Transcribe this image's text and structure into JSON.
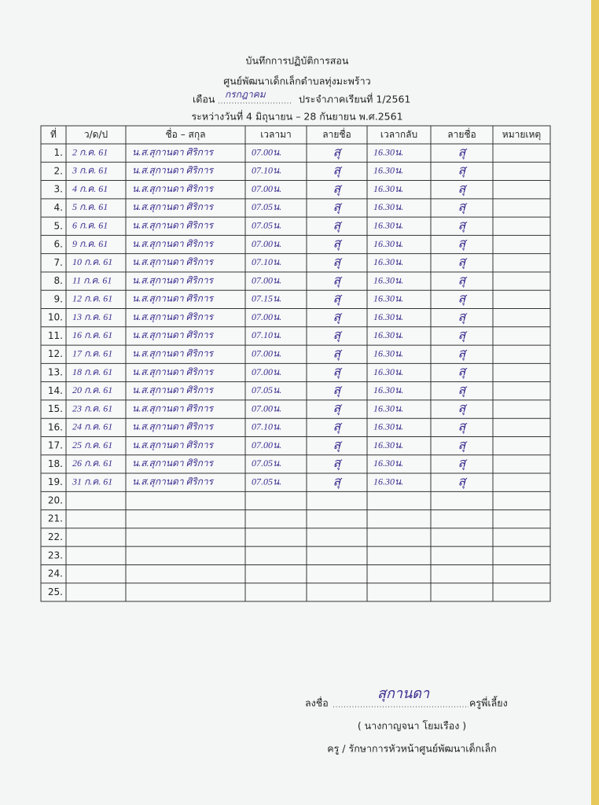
{
  "header": {
    "title": "บันทึกการปฏิบัติการสอน",
    "subtitle": "ศูนย์พัฒนาเด็กเล็กตำบลทุ่งมะพร้าว",
    "month_label": "เดือน",
    "month": "กรกฎาคม",
    "semester": "ประจำภาคเรียนที่ 1/2561",
    "period": "ระหว่างวันที่ 4 มิถุนายน – 28 กันยายน พ.ศ.2561"
  },
  "table": {
    "columns": [
      "ที่",
      "ว/ด/ป",
      "ชื่อ – สกุล",
      "เวลามา",
      "ลายชื่อ",
      "เวลากลับ",
      "ลายชื่อ",
      "หมายเหตุ"
    ],
    "rows": [
      [
        "1.",
        "2 ก.ค. 61",
        "น.ส.สุกานดา ศิริการ",
        "07.00น.",
        "สุ",
        "16.30น.",
        "สุ"
      ],
      [
        "2.",
        "3 ก.ค. 61",
        "น.ส.สุกานดา ศิริการ",
        "07.10น.",
        "สุ",
        "16.30น.",
        "สุ"
      ],
      [
        "3.",
        "4 ก.ค. 61",
        "น.ส.สุกานดา ศิริการ",
        "07.00น.",
        "สุ",
        "16.30น.",
        "สุ"
      ],
      [
        "4.",
        "5 ก.ค. 61",
        "น.ส.สุกานดา ศิริการ",
        "07.05น.",
        "สุ",
        "16.30น.",
        "สุ"
      ],
      [
        "5.",
        "6 ก.ค. 61",
        "น.ส.สุกานดา ศิริการ",
        "07.05น.",
        "สุ",
        "16.30น.",
        "สุ"
      ],
      [
        "6.",
        "9 ก.ค. 61",
        "น.ส.สุกานดา ศิริการ",
        "07.00น.",
        "สุ",
        "16.30น.",
        "สุ"
      ],
      [
        "7.",
        "10 ก.ค. 61",
        "น.ส.สุกานดา ศิริการ",
        "07.10น.",
        "สุ",
        "16.30น.",
        "สุ"
      ],
      [
        "8.",
        "11 ก.ค. 61",
        "น.ส.สุกานดา ศิริการ",
        "07.00น.",
        "สุ",
        "16.30น.",
        "สุ"
      ],
      [
        "9.",
        "12 ก.ค. 61",
        "น.ส.สุกานดา ศิริการ",
        "07.15น.",
        "สุ",
        "16.30น.",
        "สุ"
      ],
      [
        "10.",
        "13 ก.ค. 61",
        "น.ส.สุกานดา ศิริการ",
        "07.00น.",
        "สุ",
        "16.30น.",
        "สุ"
      ],
      [
        "11.",
        "16 ก.ค. 61",
        "น.ส.สุกานดา ศิริการ",
        "07.10น.",
        "สุ",
        "16.30น.",
        "สุ"
      ],
      [
        "12.",
        "17 ก.ค. 61",
        "น.ส.สุกานดา ศิริการ",
        "07.00น.",
        "สุ",
        "16.30น.",
        "สุ"
      ],
      [
        "13.",
        "18 ก.ค. 61",
        "น.ส.สุกานดา ศิริการ",
        "07.00น.",
        "สุ",
        "16.30น.",
        "สุ"
      ],
      [
        "14.",
        "20 ก.ค. 61",
        "น.ส.สุกานดา ศิริการ",
        "07.05น.",
        "สุ",
        "16.30น.",
        "สุ"
      ],
      [
        "15.",
        "23 ก.ค. 61",
        "น.ส.สุกานดา ศิริการ",
        "07.00น.",
        "สุ",
        "16.30น.",
        "สุ"
      ],
      [
        "16.",
        "24 ก.ค. 61",
        "น.ส.สุกานดา ศิริการ",
        "07.10น.",
        "สุ",
        "16.30น.",
        "สุ"
      ],
      [
        "17.",
        "25 ก.ค. 61",
        "น.ส.สุกานดา ศิริการ",
        "07.00น.",
        "สุ",
        "16.30น.",
        "สุ"
      ],
      [
        "18.",
        "26 ก.ค. 61",
        "น.ส.สุกานดา ศิริการ",
        "07.05น.",
        "สุ",
        "16.30น.",
        "สุ"
      ],
      [
        "19.",
        "31 ก.ค. 61",
        "น.ส.สุกานดา ศิริการ",
        "07.05น.",
        "สุ",
        "16.30น.",
        "สุ"
      ],
      [
        "20."
      ],
      [
        "21."
      ],
      [
        "22."
      ],
      [
        "23."
      ],
      [
        "24."
      ],
      [
        "25."
      ]
    ]
  },
  "footer": {
    "sign_label": "ลงชื่อ",
    "signature": "สุกานดา",
    "role": "ครูพี่เลี้ยง",
    "name": "( นางกาญจนา  โยมเรือง )",
    "position": "ครู / รักษาการหัวหน้าศูนย์พัฒนาเด็กเล็ก"
  }
}
